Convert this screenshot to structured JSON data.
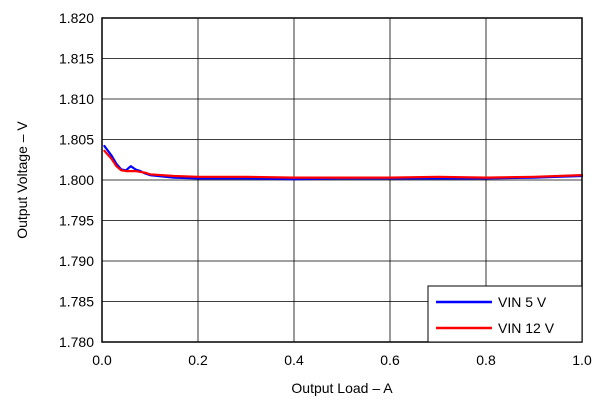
{
  "chart_data": {
    "type": "line",
    "xlabel": "Output Load – A",
    "ylabel": "Output Voltage – V",
    "xlim": [
      0.0,
      1.0
    ],
    "ylim": [
      1.78,
      1.82
    ],
    "x_ticks": [
      "0.0",
      "0.2",
      "0.4",
      "0.6",
      "0.8",
      "1.0"
    ],
    "y_ticks": [
      "1.780",
      "1.785",
      "1.790",
      "1.795",
      "1.800",
      "1.805",
      "1.810",
      "1.815",
      "1.820"
    ],
    "grid": true,
    "legend_position": "bottom-right",
    "series": [
      {
        "name": "VIN 5 V",
        "color": "#0000ff",
        "x": [
          0.005,
          0.02,
          0.03,
          0.04,
          0.05,
          0.06,
          0.07,
          0.08,
          0.09,
          0.1,
          0.15,
          0.2,
          0.3,
          0.4,
          0.5,
          0.6,
          0.7,
          0.8,
          0.9,
          0.95,
          1.0
        ],
        "y": [
          1.8042,
          1.803,
          1.802,
          1.8013,
          1.8012,
          1.8017,
          1.8013,
          1.8011,
          1.8008,
          1.8006,
          1.8003,
          1.8002,
          1.8002,
          1.8001,
          1.8002,
          1.8002,
          1.8002,
          1.8002,
          1.8003,
          1.8004,
          1.8005
        ]
      },
      {
        "name": "VIN 12 V",
        "color": "#ff0000",
        "x": [
          0.005,
          0.02,
          0.03,
          0.04,
          0.05,
          0.06,
          0.07,
          0.08,
          0.09,
          0.1,
          0.15,
          0.2,
          0.3,
          0.4,
          0.5,
          0.6,
          0.7,
          0.8,
          0.9,
          0.95,
          1.0
        ],
        "y": [
          1.8036,
          1.8026,
          1.8017,
          1.8012,
          1.8011,
          1.8011,
          1.8011,
          1.801,
          1.8009,
          1.8007,
          1.8005,
          1.8004,
          1.8004,
          1.8003,
          1.8003,
          1.8003,
          1.8004,
          1.8003,
          1.8004,
          1.8005,
          1.8006
        ]
      }
    ]
  }
}
